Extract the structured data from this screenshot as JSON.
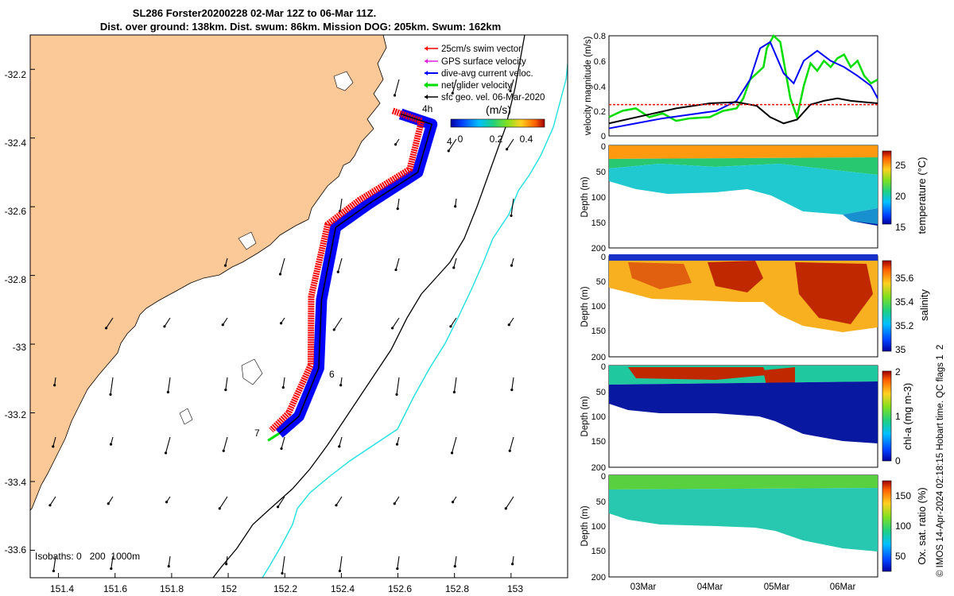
{
  "title": {
    "line1": "SL286 Forster20200228 02-Mar 12Z to 06-Mar 11Z.",
    "line2": "Dist. over ground: 138km. Dist. swum: 86km. Mission DOG: 205km. Swum: 162km"
  },
  "footer_credit": "© IMOS 14-Apr-2024 02:18:15 Hobart time. QC flags 1  2",
  "colors": {
    "land": "#fbc898",
    "swim_vector": "#ff0000",
    "gps_velocity": "#e020e0",
    "current_velocity": "#0000ff",
    "net_velocity": "#00dd00",
    "geostrophic": "#000000",
    "isobath_200": "#000000",
    "isobath_1000": "#20e0e0"
  },
  "chart_data": [
    {
      "type": "map",
      "xlim": [
        151.3,
        153.2
      ],
      "ylim": [
        -33.68,
        -32.1
      ],
      "x_ticks": [
        "151.4",
        "151.6",
        "151.8",
        "152",
        "152.2",
        "152.4",
        "152.6",
        "152.8",
        "153"
      ],
      "y_ticks": [
        "-32.2",
        "-32.4",
        "-32.6",
        "-32.8",
        "-33",
        "-33.2",
        "-33.4",
        "-33.6"
      ],
      "x_tick_values": [
        151.4,
        151.6,
        151.8,
        152.0,
        152.2,
        152.4,
        152.6,
        152.8,
        153.0
      ],
      "y_tick_values": [
        -32.2,
        -32.4,
        -32.6,
        -32.8,
        -33.0,
        -33.2,
        -33.4,
        -33.6
      ],
      "legend": [
        "25cm/s swim vector",
        "GPS surface velocity",
        "dive-avg current veloc.",
        "net glider velocity",
        "sfc geo. vel. 06-Mar-2020"
      ],
      "colorbar": {
        "label": "(m/s)",
        "ticks": [
          "0",
          "0.2",
          "0.4"
        ],
        "range": [
          0,
          0.5
        ]
      },
      "isobaths_text": "Isobaths: 0   200  1000m",
      "track_labels": [
        "4h",
        "4",
        "6",
        "7"
      ],
      "glider_track": [
        [
          152.61,
          -32.33
        ],
        [
          152.72,
          -32.36
        ],
        [
          152.67,
          -32.5
        ],
        [
          152.5,
          -32.59
        ],
        [
          152.38,
          -32.66
        ],
        [
          152.33,
          -32.87
        ],
        [
          152.32,
          -33.07
        ],
        [
          152.25,
          -33.21
        ],
        [
          152.18,
          -33.26
        ]
      ]
    },
    {
      "type": "line",
      "ylabel": "velocity magnitude (m/s)",
      "ylim": [
        0,
        0.8
      ],
      "y_ticks": [
        "0",
        "0.2",
        "0.4",
        "0.6",
        "0.8"
      ],
      "xlim": [
        0,
        4
      ],
      "series": [
        {
          "name": "net glider velocity",
          "color": "#00dd00",
          "x": [
            0,
            0.2,
            0.4,
            0.6,
            0.8,
            1.0,
            1.2,
            1.5,
            1.7,
            1.9,
            2.0,
            2.1,
            2.3,
            2.35,
            2.45,
            2.55,
            2.7,
            2.8,
            2.9,
            3.0,
            3.1,
            3.2,
            3.3,
            3.4,
            3.5,
            3.6,
            3.7,
            3.8,
            3.9,
            4.0
          ],
          "y": [
            0.15,
            0.2,
            0.22,
            0.15,
            0.18,
            0.12,
            0.14,
            0.15,
            0.2,
            0.22,
            0.3,
            0.45,
            0.55,
            0.7,
            0.8,
            0.75,
            0.3,
            0.15,
            0.4,
            0.58,
            0.52,
            0.6,
            0.55,
            0.62,
            0.65,
            0.55,
            0.6,
            0.48,
            0.42,
            0.45
          ]
        },
        {
          "name": "dive-avg current veloc.",
          "color": "#0000ff",
          "x": [
            0,
            0.4,
            0.8,
            1.2,
            1.6,
            1.9,
            2.1,
            2.25,
            2.4,
            2.6,
            2.75,
            2.9,
            3.1,
            3.3,
            3.5,
            3.7,
            3.9,
            4.0
          ],
          "y": [
            0.06,
            0.1,
            0.14,
            0.17,
            0.2,
            0.28,
            0.45,
            0.7,
            0.75,
            0.5,
            0.42,
            0.6,
            0.68,
            0.6,
            0.55,
            0.48,
            0.4,
            0.3
          ]
        },
        {
          "name": "sfc geo. vel. 06-Mar-2020",
          "color": "#000000",
          "x": [
            0,
            0.5,
            1.0,
            1.5,
            1.9,
            2.2,
            2.4,
            2.6,
            2.8,
            3.0,
            3.2,
            3.4,
            3.6,
            3.8,
            4.0
          ],
          "y": [
            0.1,
            0.16,
            0.22,
            0.26,
            0.27,
            0.24,
            0.15,
            0.1,
            0.13,
            0.25,
            0.28,
            0.3,
            0.28,
            0.27,
            0.26
          ]
        },
        {
          "name": "25cm/s swim vector",
          "color": "#ff0000",
          "x": [
            0,
            4
          ],
          "y": [
            0.25,
            0.25
          ]
        }
      ]
    },
    {
      "type": "heatmap",
      "ylabel": "Depth (m)",
      "colorbar_label": "temperature (°C)",
      "y_ticks": [
        "0",
        "50",
        "100",
        "150",
        "200"
      ],
      "ylim": [
        200,
        0
      ],
      "colorbar_ticks": [
        "15",
        "20",
        "25"
      ],
      "colorbar_range": [
        12,
        28
      ],
      "x_ticks": [
        "03Mar",
        "04Mar",
        "05Mar",
        "06Mar"
      ]
    },
    {
      "type": "heatmap",
      "ylabel": "Depth (m)",
      "colorbar_label": "salinity",
      "y_ticks": [
        "0",
        "50",
        "100",
        "150",
        "200"
      ],
      "ylim": [
        200,
        0
      ],
      "colorbar_ticks": [
        "35",
        "35.2",
        "35.4",
        "35.6"
      ],
      "colorbar_range": [
        34.95,
        35.7
      ],
      "x_ticks": [
        "03Mar",
        "04Mar",
        "05Mar",
        "06Mar"
      ]
    },
    {
      "type": "heatmap",
      "ylabel": "Depth (m)",
      "colorbar_label": "chl-a (mg m-3)",
      "y_ticks": [
        "0",
        "50",
        "100",
        "150",
        "200"
      ],
      "ylim": [
        200,
        0
      ],
      "colorbar_ticks": [
        "0",
        "1",
        "2"
      ],
      "colorbar_range": [
        0,
        2
      ],
      "x_ticks": [
        "03Mar",
        "04Mar",
        "05Mar",
        "06Mar"
      ]
    },
    {
      "type": "heatmap",
      "ylabel": "Depth (m)",
      "colorbar_label": "Ox. sat. ratio (%)",
      "y_ticks": [
        "0",
        "50",
        "100",
        "150",
        "200"
      ],
      "ylim": [
        200,
        0
      ],
      "colorbar_ticks": [
        "50",
        "100",
        "150"
      ],
      "colorbar_range": [
        25,
        175
      ],
      "x_ticks": [
        "03Mar",
        "04Mar",
        "05Mar",
        "06Mar"
      ]
    }
  ]
}
